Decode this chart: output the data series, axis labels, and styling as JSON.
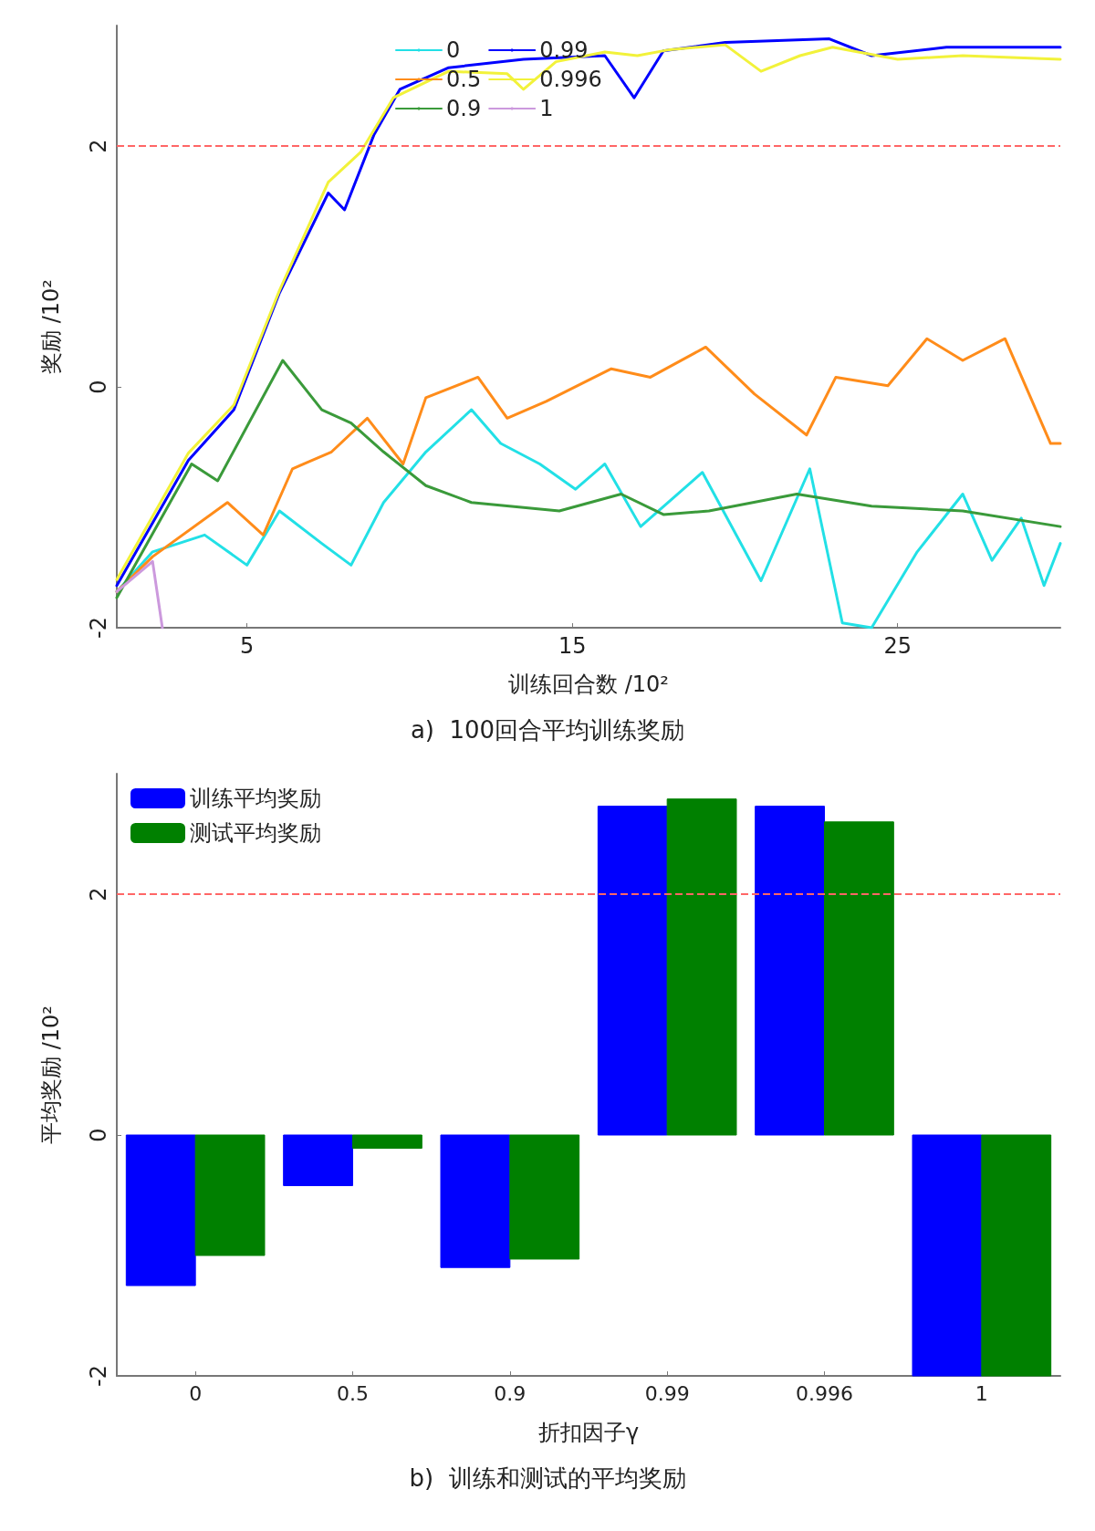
{
  "chart_data": [
    {
      "type": "line",
      "title": "a)  100回合平均训练奖励",
      "xlabel": "训练回合数 /10²",
      "ylabel": "奖励 /10²",
      "xlim": [
        1,
        30
      ],
      "xticks": [
        5,
        15,
        25
      ],
      "ylim": [
        -2,
        3
      ],
      "yticks": [
        -2,
        0,
        2
      ],
      "grid": false,
      "legend": "top",
      "marker": "none",
      "line_style": "solid",
      "ref_lines": [
        {
          "axis": "y",
          "value": 2,
          "color": "#ff6666",
          "line_style": "dashed"
        }
      ],
      "series": [
        {
          "name": "0",
          "color": "#22e0e6",
          "x": [
            1,
            2.1,
            3.7,
            5.0,
            6.0,
            7.3,
            8.2,
            9.2,
            10.5,
            11.9,
            12.8,
            14.0,
            15.1,
            16.0,
            17.1,
            19.0,
            20.8,
            22.3,
            23.3,
            24.2,
            25.6,
            27,
            27.9,
            28.8,
            29.5,
            30
          ],
          "values": [
            -1.7,
            -1.37,
            -1.23,
            -1.48,
            -1.03,
            -1.3,
            -1.48,
            -0.96,
            -0.54,
            -0.19,
            -0.47,
            -0.64,
            -0.85,
            -0.64,
            -1.16,
            -0.71,
            -1.61,
            -0.68,
            -1.96,
            -2.0,
            -1.37,
            -0.89,
            -1.44,
            -1.09,
            -1.65,
            -1.3
          ]
        },
        {
          "name": "0.5",
          "color": "#ff8c1a",
          "x": [
            1,
            2.1,
            4.4,
            5.5,
            6.4,
            7.6,
            8.7,
            9.8,
            10.5,
            12.1,
            13.0,
            14.2,
            16.2,
            17.4,
            19.1,
            20.6,
            22.2,
            23.1,
            24.7,
            25.9,
            27.0,
            28.3,
            29.7,
            30
          ],
          "values": [
            -1.7,
            -1.41,
            -0.96,
            -1.23,
            -0.68,
            -0.54,
            -0.26,
            -0.64,
            -0.09,
            0.08,
            -0.26,
            -0.12,
            0.15,
            0.08,
            0.33,
            -0.06,
            -0.4,
            0.08,
            0.01,
            0.4,
            0.22,
            0.4,
            -0.47,
            -0.47
          ]
        },
        {
          "name": "0.9",
          "color": "#3a9a3a",
          "x": [
            1,
            3.3,
            4.1,
            5.0,
            6.1,
            7.3,
            8.2,
            9.2,
            10.5,
            11.9,
            14.6,
            16.5,
            17.8,
            19.2,
            21.9,
            24.2,
            27,
            30
          ],
          "values": [
            -1.75,
            -0.64,
            -0.78,
            -0.33,
            0.22,
            -0.19,
            -0.3,
            -0.54,
            -0.82,
            -0.96,
            -1.03,
            -0.89,
            -1.06,
            -1.03,
            -0.89,
            -0.99,
            -1.03,
            -1.16
          ]
        },
        {
          "name": "0.99",
          "color": "#0000ff",
          "x": [
            1,
            3.2,
            4.6,
            6.0,
            7.5,
            8.0,
            8.9,
            9.7,
            11.2,
            13.5,
            16.0,
            16.9,
            17.8,
            19.7,
            22.9,
            24.2,
            26.5,
            30
          ],
          "values": [
            -1.65,
            -0.61,
            -0.19,
            0.78,
            1.61,
            1.47,
            2.09,
            2.47,
            2.65,
            2.72,
            2.75,
            2.4,
            2.79,
            2.86,
            2.89,
            2.75,
            2.82,
            2.82
          ]
        },
        {
          "name": "0.996",
          "color": "#f2f23a",
          "x": [
            1,
            3.2,
            4.6,
            6,
            7.5,
            8.5,
            9.5,
            11.2,
            13,
            13.5,
            14.5,
            16,
            17,
            18,
            19.7,
            20.8,
            22,
            23,
            25,
            27,
            30
          ],
          "values": [
            -1.6,
            -0.55,
            -0.15,
            0.8,
            1.7,
            1.95,
            2.4,
            2.62,
            2.6,
            2.47,
            2.7,
            2.78,
            2.75,
            2.8,
            2.84,
            2.62,
            2.75,
            2.82,
            2.72,
            2.75,
            2.72
          ]
        },
        {
          "name": "1",
          "color": "#cc99dd",
          "x": [
            1,
            2.1,
            2.4
          ],
          "values": [
            -1.7,
            -1.45,
            -2
          ]
        }
      ]
    },
    {
      "type": "bar",
      "title": "b)  训练和测试的平均奖励",
      "xlabel": "折扣因子γ",
      "ylabel": "平均奖励 /10²",
      "categories": [
        "0",
        "0.5",
        "0.9",
        "0.99",
        "0.996",
        "1"
      ],
      "ylim": [
        -2,
        3
      ],
      "yticks": [
        -2,
        0,
        2
      ],
      "grid": false,
      "legend": "top left",
      "ref_lines": [
        {
          "axis": "y",
          "value": 2,
          "color": "#ff6666",
          "line_style": "dashed"
        }
      ],
      "series": [
        {
          "name": "训练平均奖励",
          "color": "#0000ff",
          "values": [
            -1.25,
            -0.42,
            -1.1,
            2.73,
            2.73,
            -2
          ]
        },
        {
          "name": "测试平均奖励",
          "color": "#008000",
          "values": [
            -1.0,
            -0.11,
            -1.03,
            2.79,
            2.6,
            -2
          ]
        }
      ]
    }
  ]
}
